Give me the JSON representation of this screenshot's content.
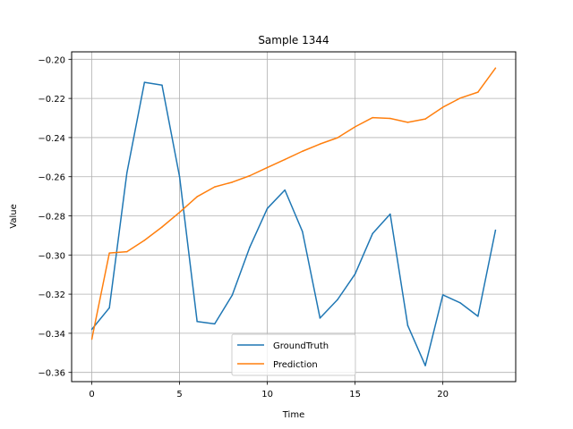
{
  "chart_data": {
    "type": "line",
    "title": "Sample 1344",
    "xlabel": "Time",
    "ylabel": "Value",
    "xlim": [
      -1.15,
      24.15
    ],
    "ylim": [
      -0.3647,
      -0.1962
    ],
    "xticks": [
      0,
      5,
      10,
      15,
      20
    ],
    "xtick_labels": [
      "0",
      "5",
      "10",
      "15",
      "20"
    ],
    "yticks": [
      -0.36,
      -0.34,
      -0.32,
      -0.3,
      -0.28,
      -0.26,
      -0.24,
      -0.22,
      -0.2
    ],
    "ytick_labels": [
      "−0.36",
      "−0.34",
      "−0.32",
      "−0.30",
      "−0.28",
      "−0.26",
      "−0.24",
      "−0.22",
      "−0.20"
    ],
    "grid": true,
    "legend_position": "lower center",
    "x": [
      0,
      1,
      2,
      3,
      4,
      5,
      6,
      7,
      8,
      9,
      10,
      11,
      12,
      13,
      14,
      15,
      16,
      17,
      18,
      19,
      20,
      21,
      22,
      23
    ],
    "series": [
      {
        "name": "GroundTruth",
        "color": "#1f77b4",
        "values": [
          -0.338,
          -0.327,
          -0.258,
          -0.2118,
          -0.2132,
          -0.26,
          -0.334,
          -0.3352,
          -0.3205,
          -0.296,
          -0.2762,
          -0.2668,
          -0.288,
          -0.3322,
          -0.3228,
          -0.3097,
          -0.289,
          -0.2791,
          -0.336,
          -0.3565,
          -0.3204,
          -0.3245,
          -0.3313,
          -0.2873
        ]
      },
      {
        "name": "Prediction",
        "color": "#ff7f0e",
        "values": [
          -0.343,
          -0.299,
          -0.2983,
          -0.2925,
          -0.2857,
          -0.2782,
          -0.2702,
          -0.2652,
          -0.2628,
          -0.2595,
          -0.2553,
          -0.2512,
          -0.247,
          -0.2433,
          -0.2401,
          -0.2345,
          -0.2298,
          -0.2302,
          -0.2322,
          -0.2305,
          -0.2245,
          -0.2198,
          -0.2168,
          -0.2045
        ]
      }
    ]
  }
}
